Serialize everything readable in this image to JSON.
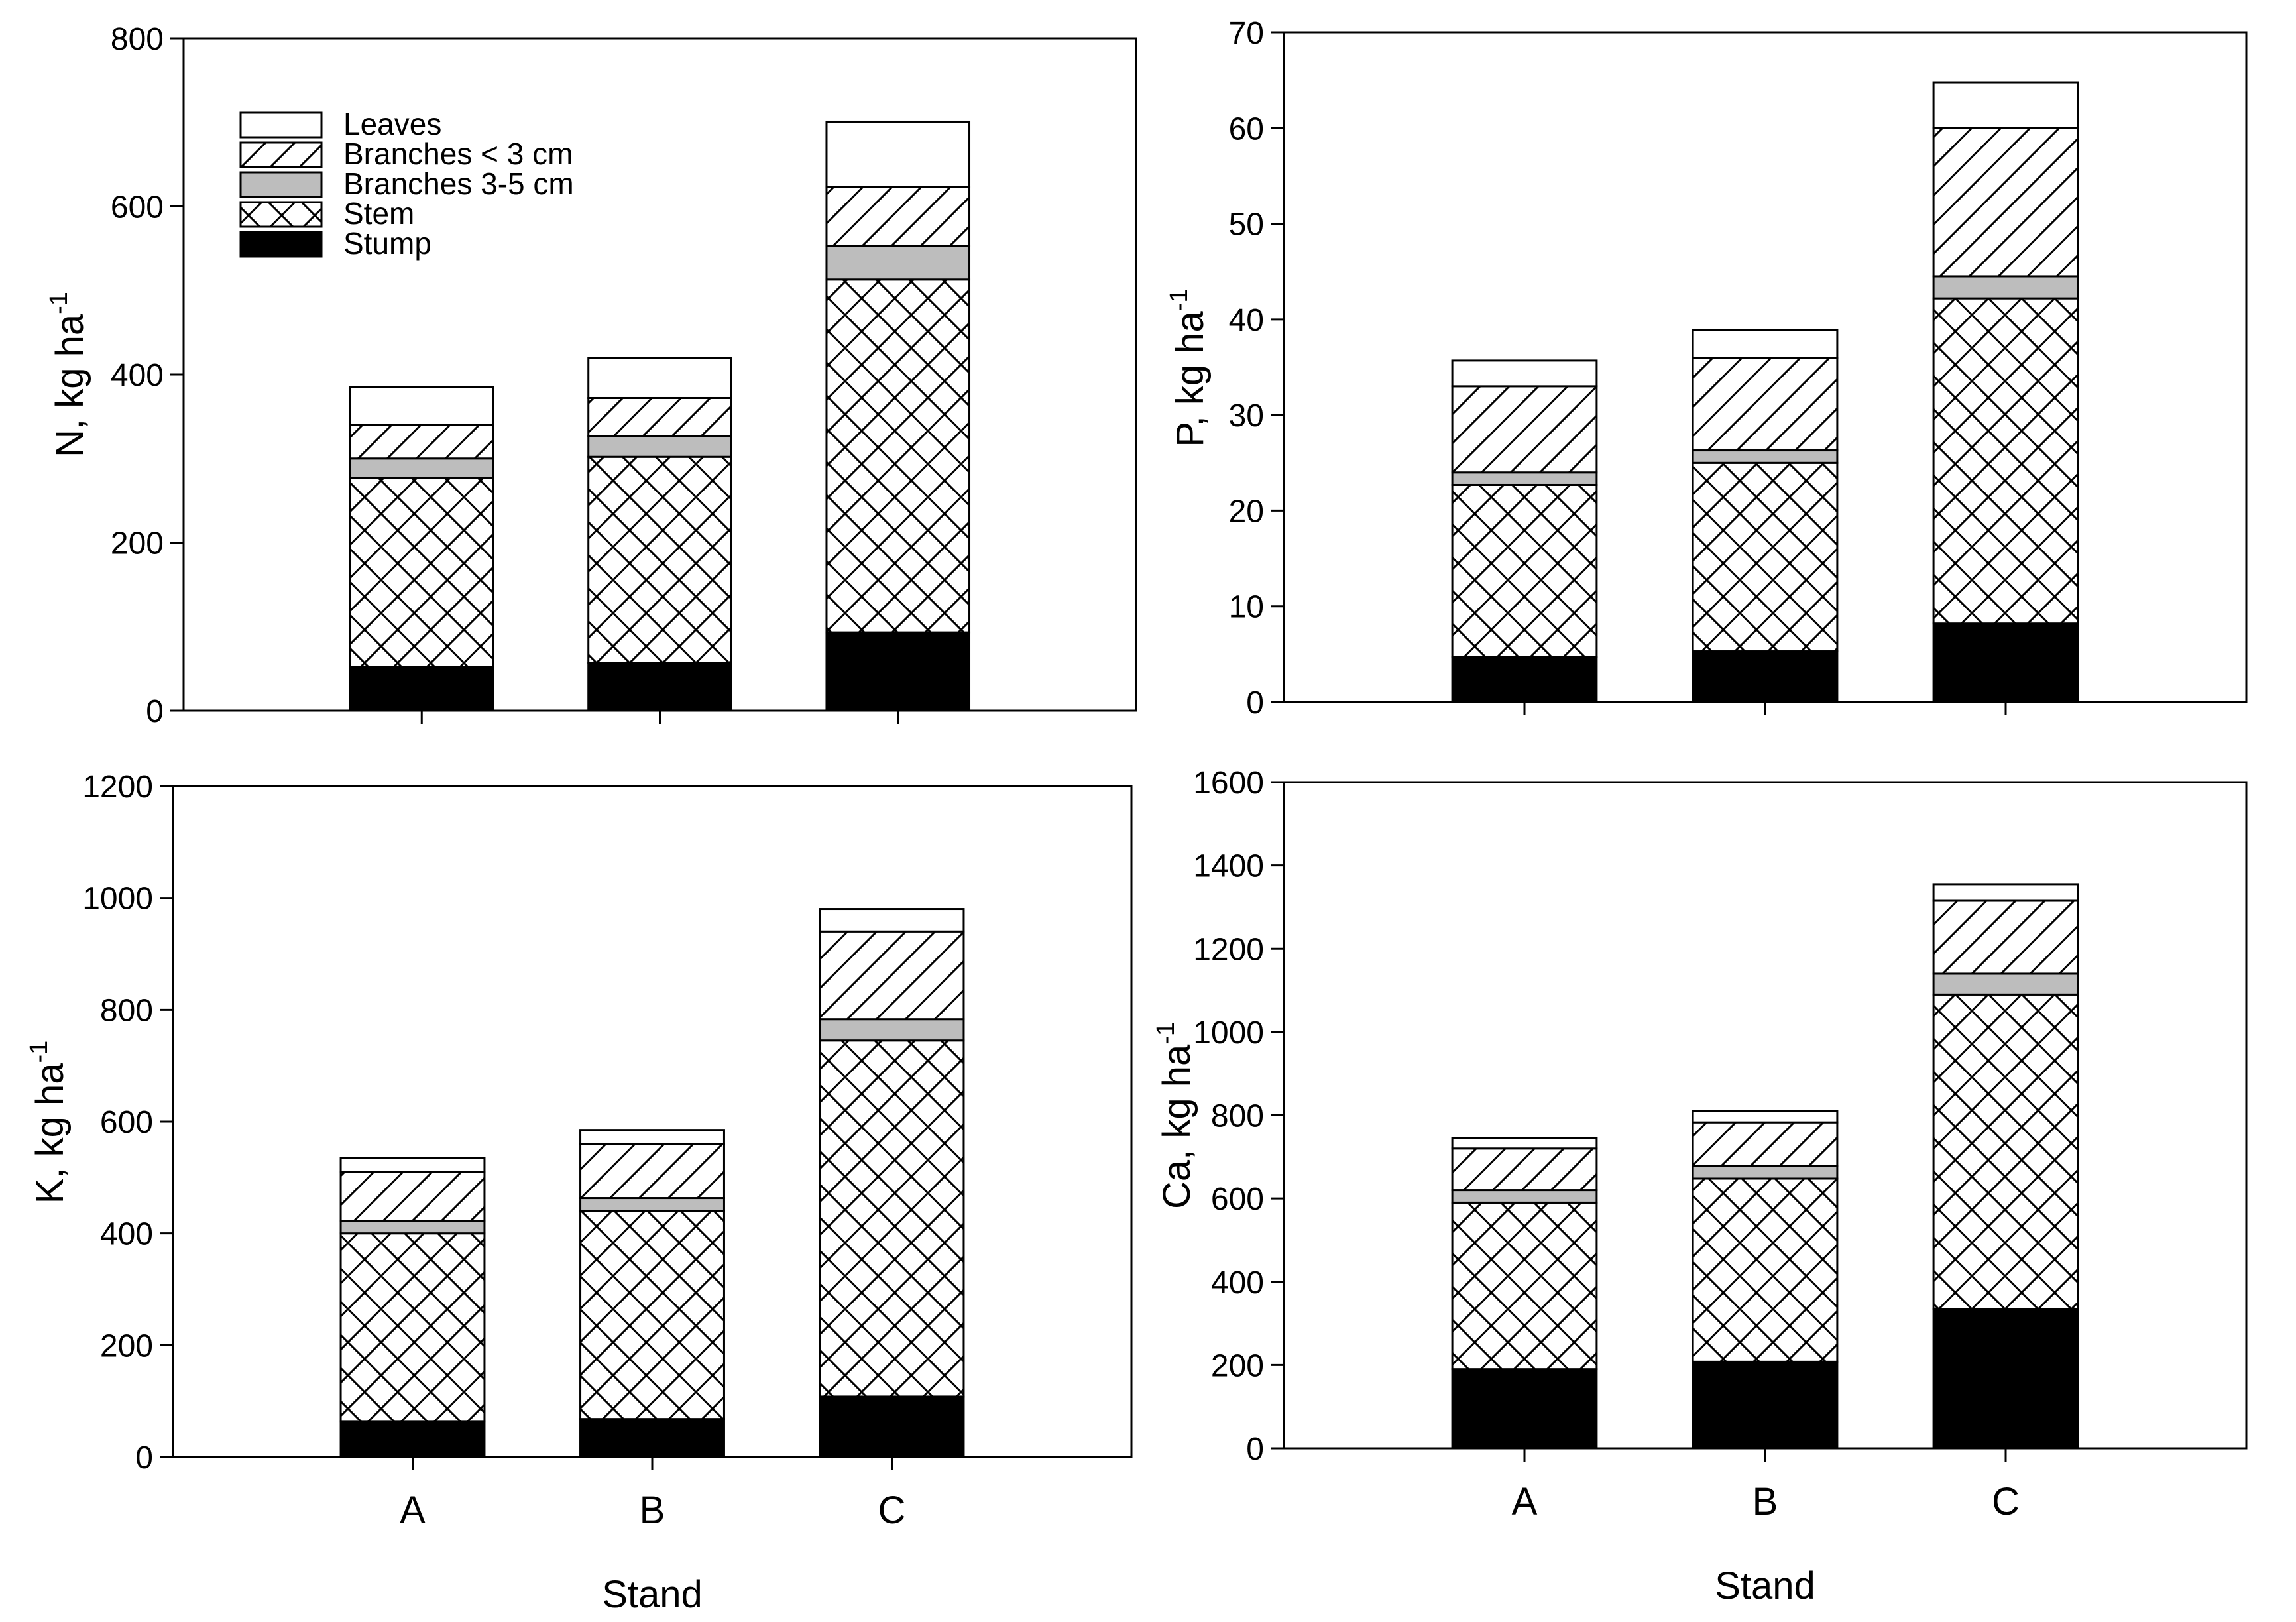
{
  "figure": {
    "x_axis_title": "Stand"
  },
  "legend": [
    {
      "key": "leaves",
      "label": "Leaves"
    },
    {
      "key": "br3",
      "label": "Branches < 3 cm"
    },
    {
      "key": "br35",
      "label": "Branches 3-5 cm"
    },
    {
      "key": "stem",
      "label": "Stem"
    },
    {
      "key": "stump",
      "label": "Stump"
    }
  ],
  "chart_data": [
    {
      "type": "bar",
      "stacked": true,
      "element": "N",
      "ylabel": "N, kg ha",
      "ylabel_superscript": "-1",
      "xlabel": "",
      "categories": [
        "A",
        "B",
        "C"
      ],
      "ylim": [
        0,
        800
      ],
      "yticks": [
        0,
        200,
        400,
        600,
        800
      ],
      "show_x_tick_labels": false,
      "series": [
        {
          "name": "Stump",
          "values": [
            52,
            57,
            93
          ]
        },
        {
          "name": "Stem",
          "values": [
            225,
            245,
            420
          ]
        },
        {
          "name": "Branches 3-5 cm",
          "values": [
            23,
            25,
            40
          ]
        },
        {
          "name": "Branches < 3 cm",
          "values": [
            40,
            45,
            70
          ]
        },
        {
          "name": "Leaves",
          "values": [
            45,
            48,
            78
          ]
        }
      ]
    },
    {
      "type": "bar",
      "stacked": true,
      "element": "P",
      "ylabel": "P, kg ha",
      "ylabel_superscript": "-1",
      "xlabel": "",
      "categories": [
        "A",
        "B",
        "C"
      ],
      "ylim": [
        0,
        70
      ],
      "yticks": [
        0,
        10,
        20,
        30,
        40,
        50,
        60,
        70
      ],
      "show_x_tick_labels": false,
      "series": [
        {
          "name": "Stump",
          "values": [
            4.7,
            5.3,
            8.2
          ]
        },
        {
          "name": "Stem",
          "values": [
            18.0,
            19.7,
            34.0
          ]
        },
        {
          "name": "Branches 3-5 cm",
          "values": [
            1.3,
            1.3,
            2.3
          ]
        },
        {
          "name": "Branches < 3 cm",
          "values": [
            9.0,
            9.7,
            15.5
          ]
        },
        {
          "name": "Leaves",
          "values": [
            2.7,
            2.9,
            4.8
          ]
        }
      ]
    },
    {
      "type": "bar",
      "stacked": true,
      "element": "K",
      "ylabel": "K, kg ha",
      "ylabel_superscript": "-1",
      "xlabel": "Stand",
      "categories": [
        "A",
        "B",
        "C"
      ],
      "ylim": [
        0,
        1200
      ],
      "yticks": [
        0,
        200,
        400,
        600,
        800,
        1000,
        1200
      ],
      "show_x_tick_labels": true,
      "series": [
        {
          "name": "Stump",
          "values": [
            63,
            68,
            108
          ]
        },
        {
          "name": "Stem",
          "values": [
            337,
            372,
            637
          ]
        },
        {
          "name": "Branches 3-5 cm",
          "values": [
            22,
            23,
            38
          ]
        },
        {
          "name": "Branches < 3 cm",
          "values": [
            88,
            97,
            157
          ]
        },
        {
          "name": "Leaves",
          "values": [
            25,
            25,
            40
          ]
        }
      ]
    },
    {
      "type": "bar",
      "stacked": true,
      "element": "Ca",
      "ylabel": "Ca, kg ha",
      "ylabel_superscript": "-1",
      "xlabel": "Stand",
      "categories": [
        "A",
        "B",
        "C"
      ],
      "ylim": [
        0,
        1600
      ],
      "yticks": [
        0,
        200,
        400,
        600,
        800,
        1000,
        1200,
        1400,
        1600
      ],
      "show_x_tick_labels": true,
      "series": [
        {
          "name": "Stump",
          "values": [
            190,
            208,
            335
          ]
        },
        {
          "name": "Stem",
          "values": [
            400,
            440,
            755
          ]
        },
        {
          "name": "Branches 3-5 cm",
          "values": [
            30,
            30,
            50
          ]
        },
        {
          "name": "Branches < 3 cm",
          "values": [
            100,
            105,
            175
          ]
        },
        {
          "name": "Leaves",
          "values": [
            25,
            28,
            40
          ]
        }
      ]
    }
  ]
}
